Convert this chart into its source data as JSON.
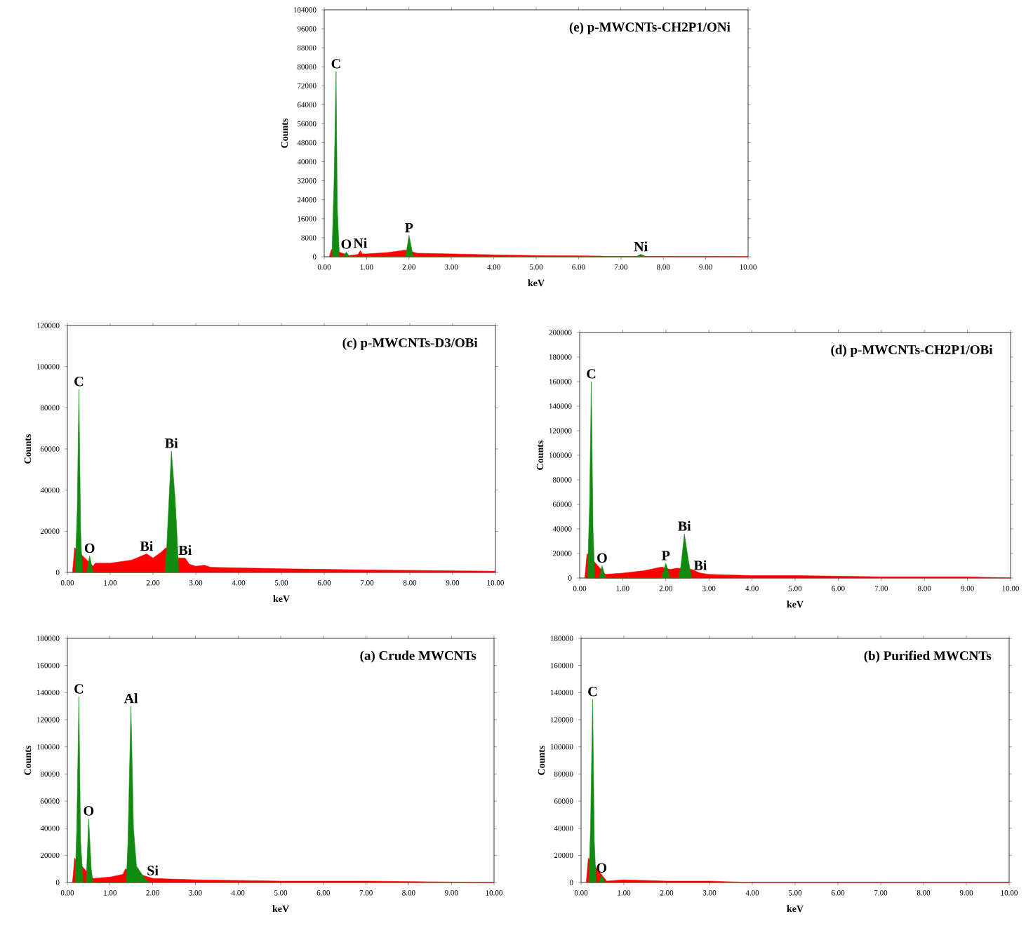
{
  "chart_data": [
    {
      "type": "area",
      "title": "(e) p-MWCNTs-CH2P1/ONi",
      "xlabel": "keV",
      "ylabel": "Counts",
      "xlim": [
        0,
        10
      ],
      "xticks": [
        {
          "value": 0,
          "label": "0.00"
        },
        {
          "value": 1,
          "label": "1.00"
        },
        {
          "value": 2,
          "label": "2.00"
        },
        {
          "value": 3,
          "label": "3.00"
        },
        {
          "value": 4,
          "label": "4.00"
        },
        {
          "value": 5,
          "label": "5.00"
        },
        {
          "value": 6,
          "label": "6.00"
        },
        {
          "value": 7,
          "label": "7.00"
        },
        {
          "value": 8,
          "label": "8.00"
        },
        {
          "value": 9,
          "label": "9.00"
        },
        {
          "value": 10,
          "label": "10.00"
        }
      ],
      "ylim": [
        0,
        104000
      ],
      "yticks": [
        0,
        8000,
        16000,
        24000,
        32000,
        40000,
        48000,
        56000,
        64000,
        72000,
        80000,
        88000,
        96000,
        104000
      ],
      "series": [
        {
          "color": "#ff0000",
          "x": [
            0.12,
            0.17,
            0.6,
            0.8,
            0.85,
            0.9,
            1.0,
            1.5,
            1.8,
            1.9,
            2.2,
            3.0,
            4.0,
            5.0,
            6.0,
            6.5,
            6.6,
            7.0,
            8.0,
            10.0
          ],
          "values": [
            0,
            3000,
            500,
            1000,
            2500,
            1200,
            1200,
            1800,
            2500,
            2800,
            1500,
            1200,
            800,
            500,
            400,
            300,
            100,
            100,
            100,
            0
          ]
        },
        {
          "color": "#128a12",
          "x": [
            0.18,
            0.23,
            0.28,
            0.31,
            0.36,
            0.45,
            0.52,
            0.6,
            1.92,
            2.0,
            2.1,
            7.35,
            7.47,
            7.6
          ],
          "values": [
            0,
            30000,
            78000,
            20000,
            0,
            0,
            2000,
            0,
            0,
            9000,
            0,
            0,
            1000,
            0
          ]
        }
      ],
      "annotations": [
        {
          "text": "C",
          "x": 0.28,
          "y": 78000
        },
        {
          "text": "O",
          "x": 0.52,
          "y": 2000
        },
        {
          "text": "Ni",
          "x": 0.85,
          "y": 2500
        },
        {
          "text": "P",
          "x": 2.0,
          "y": 9000
        },
        {
          "text": "Ni",
          "x": 7.47,
          "y": 1000
        }
      ]
    },
    {
      "type": "area",
      "title": "(c) p-MWCNTs-D3/OBi",
      "xlabel": "keV",
      "ylabel": "Counts",
      "xlim": [
        0,
        10
      ],
      "xticks": [
        {
          "value": 0,
          "label": "0.00"
        },
        {
          "value": 1,
          "label": "1.00"
        },
        {
          "value": 2,
          "label": "2.00"
        },
        {
          "value": 3,
          "label": "3.00"
        },
        {
          "value": 4,
          "label": "4.00"
        },
        {
          "value": 5,
          "label": "5.00"
        },
        {
          "value": 6,
          "label": "6.00"
        },
        {
          "value": 7,
          "label": "7.00"
        },
        {
          "value": 8,
          "label": "8.00"
        },
        {
          "value": 9,
          "label": "9.00"
        },
        {
          "value": 10,
          "label": "10.00"
        }
      ],
      "ylim": [
        0,
        120000
      ],
      "yticks": [
        0,
        20000,
        40000,
        60000,
        80000,
        100000,
        120000
      ],
      "series": [
        {
          "color": "#ff0000",
          "x": [
            0.12,
            0.17,
            0.6,
            0.65,
            1.0,
            1.5,
            1.85,
            2.0,
            2.2,
            2.3,
            2.6,
            2.75,
            2.85,
            3.0,
            3.2,
            3.35,
            4.0,
            5.0,
            6.0,
            7.0,
            8.0,
            9.0,
            10.0
          ],
          "values": [
            0,
            12000,
            3000,
            4500,
            4500,
            6000,
            9000,
            7000,
            10000,
            12000,
            7000,
            7000,
            4000,
            3000,
            3500,
            2500,
            2200,
            1800,
            1500,
            1200,
            1000,
            800,
            600
          ]
        },
        {
          "color": "#128a12",
          "x": [
            0.18,
            0.23,
            0.27,
            0.31,
            0.35,
            0.45,
            0.52,
            0.6,
            2.28,
            2.32,
            2.43,
            2.52,
            2.58,
            2.6
          ],
          "values": [
            0,
            30000,
            89000,
            20000,
            0,
            0,
            8000,
            0,
            0,
            12000,
            59000,
            35000,
            10000,
            0
          ]
        }
      ],
      "annotations": [
        {
          "text": "C",
          "x": 0.27,
          "y": 89000
        },
        {
          "text": "O",
          "x": 0.52,
          "y": 8000
        },
        {
          "text": "Bi",
          "x": 1.85,
          "y": 9000
        },
        {
          "text": "Bi",
          "x": 2.43,
          "y": 59000
        },
        {
          "text": "Bi",
          "x": 2.75,
          "y": 7000
        }
      ]
    },
    {
      "type": "area",
      "title": "(d) p-MWCNTs-CH2P1/OBi",
      "xlabel": "keV",
      "ylabel": "Counts",
      "xlim": [
        0,
        10
      ],
      "xticks": [
        {
          "value": 0,
          "label": "0.00"
        },
        {
          "value": 1,
          "label": "1.00"
        },
        {
          "value": 2,
          "label": "2.00"
        },
        {
          "value": 3,
          "label": "3.00"
        },
        {
          "value": 4,
          "label": "4.00"
        },
        {
          "value": 5,
          "label": "5.00"
        },
        {
          "value": 6,
          "label": "6.00"
        },
        {
          "value": 7,
          "label": "7.00"
        },
        {
          "value": 8,
          "label": "8.00"
        },
        {
          "value": 9,
          "label": "9.00"
        },
        {
          "value": 10,
          "label": "10.00"
        }
      ],
      "ylim": [
        0,
        200000
      ],
      "yticks": [
        0,
        20000,
        40000,
        60000,
        80000,
        100000,
        120000,
        140000,
        160000,
        180000,
        200000
      ],
      "series": [
        {
          "color": "#ff0000",
          "x": [
            0.12,
            0.17,
            0.6,
            1.0,
            1.5,
            1.9,
            2.1,
            2.25,
            2.6,
            2.8,
            3.0,
            4.0,
            5.0,
            7.0,
            9.0,
            10.0
          ],
          "values": [
            0,
            20000,
            3000,
            4000,
            6000,
            9000,
            7000,
            8000,
            7000,
            4000,
            3000,
            2000,
            2000,
            1000,
            1000,
            0
          ]
        },
        {
          "color": "#128a12",
          "x": [
            0.18,
            0.23,
            0.27,
            0.31,
            0.35,
            0.45,
            0.52,
            0.6,
            1.9,
            2.0,
            2.1,
            2.3,
            2.35,
            2.43,
            2.52,
            2.6
          ],
          "values": [
            0,
            60000,
            160000,
            40000,
            0,
            0,
            10000,
            0,
            0,
            12000,
            0,
            0,
            10000,
            36000,
            15000,
            0
          ]
        }
      ],
      "annotations": [
        {
          "text": "C",
          "x": 0.27,
          "y": 160000
        },
        {
          "text": "O",
          "x": 0.52,
          "y": 10000
        },
        {
          "text": "P",
          "x": 2.0,
          "y": 12000
        },
        {
          "text": "Bi",
          "x": 2.43,
          "y": 36000
        },
        {
          "text": "Bi",
          "x": 2.8,
          "y": 4000
        }
      ]
    },
    {
      "type": "area",
      "title": "(a) Crude MWCNTs",
      "xlabel": "keV",
      "ylabel": "Counts",
      "xlim": [
        0,
        10
      ],
      "xticks": [
        {
          "value": 0,
          "label": "0.00"
        },
        {
          "value": 1,
          "label": "1.00"
        },
        {
          "value": 2,
          "label": "2.00"
        },
        {
          "value": 3,
          "label": "3.00"
        },
        {
          "value": 4,
          "label": "4.00"
        },
        {
          "value": 5,
          "label": "5.00"
        },
        {
          "value": 6,
          "label": "6.00"
        },
        {
          "value": 7,
          "label": "7.00"
        },
        {
          "value": 8,
          "label": "8.00"
        },
        {
          "value": 9,
          "label": "9.00"
        },
        {
          "value": 10,
          "label": "10.00"
        }
      ],
      "ylim": [
        0,
        180000
      ],
      "yticks": [
        0,
        20000,
        40000,
        60000,
        80000,
        100000,
        120000,
        140000,
        160000,
        180000
      ],
      "series": [
        {
          "color": "#ff0000",
          "x": [
            0.12,
            0.17,
            0.6,
            1.0,
            1.3,
            1.36,
            1.8,
            2.0,
            3.0,
            5.0,
            7.0,
            10.0
          ],
          "values": [
            0,
            18000,
            3000,
            4000,
            6000,
            10000,
            5000,
            3000,
            2000,
            1000,
            1000,
            0
          ]
        },
        {
          "color": "#128a12",
          "x": [
            0.18,
            0.22,
            0.27,
            0.31,
            0.37,
            0.44,
            0.5,
            0.56,
            0.6,
            1.38,
            1.42,
            1.49,
            1.55,
            1.62,
            1.75,
            1.9
          ],
          "values": [
            0,
            40000,
            137000,
            30000,
            0,
            0,
            47000,
            10000,
            0,
            0,
            30000,
            130000,
            40000,
            12000,
            6000,
            0
          ]
        }
      ],
      "annotations": [
        {
          "text": "C",
          "x": 0.27,
          "y": 137000
        },
        {
          "text": "O",
          "x": 0.5,
          "y": 47000
        },
        {
          "text": "Al",
          "x": 1.49,
          "y": 130000
        },
        {
          "text": "Si",
          "x": 2.0,
          "y": 3000
        }
      ]
    },
    {
      "type": "area",
      "title": "(b) Purified MWCNTs",
      "xlabel": "keV",
      "ylabel": "Counts",
      "xlim": [
        0,
        10
      ],
      "xticks": [
        {
          "value": 0,
          "label": "0.00"
        },
        {
          "value": 1,
          "label": "1.00"
        },
        {
          "value": 2,
          "label": "2.00"
        },
        {
          "value": 3,
          "label": "3.00"
        },
        {
          "value": 4,
          "label": "4.00"
        },
        {
          "value": 5,
          "label": "5.00"
        },
        {
          "value": 6,
          "label": "6.00"
        },
        {
          "value": 7,
          "label": "7.00"
        },
        {
          "value": 8,
          "label": "8.00"
        },
        {
          "value": 9,
          "label": "9.00"
        },
        {
          "value": 10,
          "label": "10.00"
        }
      ],
      "ylim": [
        0,
        180000
      ],
      "yticks": [
        0,
        20000,
        40000,
        60000,
        80000,
        100000,
        120000,
        140000,
        160000,
        180000
      ],
      "series": [
        {
          "color": "#ff0000",
          "x": [
            0.12,
            0.17,
            0.6,
            1.0,
            2.0,
            3.0,
            4.0,
            10.0
          ],
          "values": [
            0,
            18000,
            1000,
            2000,
            1000,
            1000,
            0,
            0
          ]
        },
        {
          "color": "#128a12",
          "x": [
            0.18,
            0.22,
            0.27,
            0.31,
            0.35,
            0.42,
            0.48,
            0.56
          ],
          "values": [
            0,
            40000,
            135000,
            30000,
            0,
            0,
            5000,
            0
          ]
        }
      ],
      "annotations": [
        {
          "text": "C",
          "x": 0.27,
          "y": 135000
        },
        {
          "text": "O",
          "x": 0.48,
          "y": 5000
        }
      ]
    }
  ]
}
